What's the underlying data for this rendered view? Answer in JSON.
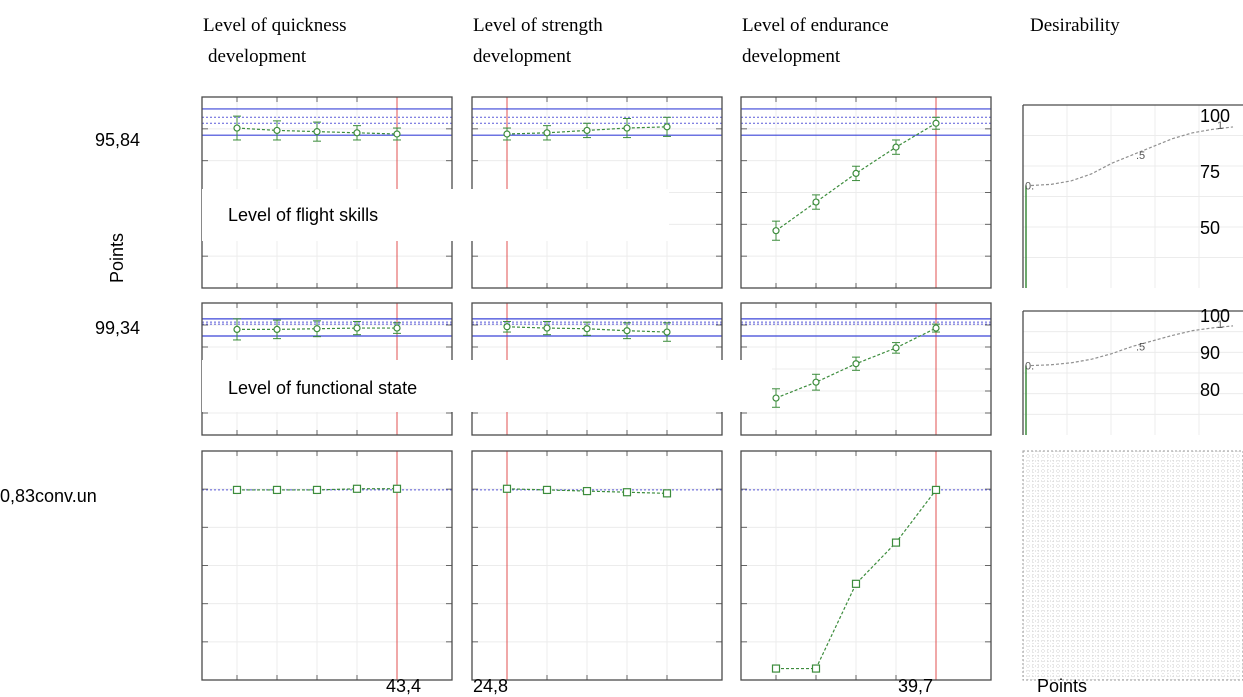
{
  "chart_data": {
    "type": "line",
    "title": "",
    "column_titles": [
      [
        "Level of quickness",
        "development"
      ],
      [
        "Level of strength",
        "development"
      ],
      [
        "Level of endurance",
        "development"
      ],
      [
        "Desirability"
      ]
    ],
    "row_labels": [
      "95,84",
      "99,34",
      "0,83conv.un"
    ],
    "row_annotations": [
      "Level of flight skills",
      "Level of functional state"
    ],
    "ylabel": "Points",
    "xlabel_right": "Points",
    "x_current_labels": [
      "43,4",
      "24,8",
      "39,7"
    ],
    "desirability_axis_labels": [
      [
        "100",
        "75",
        "50"
      ],
      [
        "100",
        "90",
        "80"
      ]
    ],
    "desirability_marks": [
      "1",
      ".5",
      "0."
    ],
    "series": [
      {
        "row": 0,
        "col": 0,
        "values": [
          87,
          86,
          85.5,
          85,
          84.5
        ],
        "err": [
          5,
          4,
          4,
          3,
          2.5
        ]
      },
      {
        "row": 0,
        "col": 1,
        "values": [
          84.5,
          85,
          86,
          87,
          87.5
        ],
        "err": [
          2.5,
          3,
          3,
          4,
          4
        ]
      },
      {
        "row": 0,
        "col": 2,
        "values": [
          44,
          56,
          68,
          79,
          89
        ],
        "err": [
          4,
          3,
          3,
          3,
          2.5
        ]
      },
      {
        "row": 1,
        "col": 0,
        "values": [
          80,
          80,
          80.5,
          81,
          81
        ],
        "err": [
          8,
          7,
          6,
          5,
          4
        ]
      },
      {
        "row": 1,
        "col": 1,
        "values": [
          82,
          81,
          80.5,
          79,
          78
        ],
        "err": [
          4,
          5,
          5,
          6,
          7
        ]
      },
      {
        "row": 1,
        "col": 2,
        "values": [
          28,
          40,
          54,
          66,
          81
        ],
        "err": [
          7,
          6,
          5,
          4,
          3
        ]
      },
      {
        "row": 2,
        "col": 0,
        "values": [
          0.83,
          0.83,
          0.83,
          0.835,
          0.835
        ]
      },
      {
        "row": 2,
        "col": 1,
        "values": [
          0.835,
          0.83,
          0.825,
          0.82,
          0.815
        ]
      },
      {
        "row": 2,
        "col": 2,
        "values": [
          0.05,
          0.05,
          0.42,
          0.6,
          0.83
        ]
      }
    ],
    "desirability_curves": [
      {
        "row": 0,
        "values": [
          0,
          0.02,
          0.08,
          0.2,
          0.38,
          0.52,
          0.66,
          0.8,
          0.9,
          0.96,
          1
        ]
      },
      {
        "row": 1,
        "values": [
          0,
          0.02,
          0.07,
          0.16,
          0.3,
          0.48,
          0.62,
          0.76,
          0.88,
          0.95,
          1
        ]
      }
    ],
    "grid": true,
    "colors": {
      "series": "#3c8c3c",
      "limits": "#3b45d8",
      "mean": "#5a5ad8",
      "current": "#e05050",
      "grid": "#ececec",
      "desirability": "#909090"
    }
  }
}
